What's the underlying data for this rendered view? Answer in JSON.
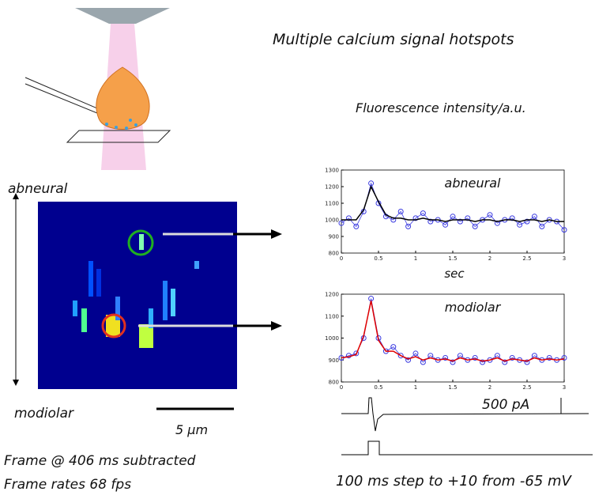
{
  "title": "Multiple calcium signal hotspots",
  "axis_note": "Fluorescence intensity/a.u.",
  "image_labels": {
    "top": "abneural",
    "bottom": "modiolar",
    "scale": "5 µm"
  },
  "notes": [
    "Frame @ 406 ms subtracted",
    "Frame rates 68 fps"
  ],
  "current_scale": "500 pA",
  "protocol": "100 ms step to +10 from -65 mV",
  "chart_data": [
    {
      "type": "line",
      "title": "abneural",
      "xlabel": "sec",
      "x": [
        0,
        0.1,
        0.2,
        0.3,
        0.4,
        0.5,
        0.6,
        0.7,
        0.8,
        0.9,
        1,
        1.1,
        1.2,
        1.3,
        1.4,
        1.5,
        1.6,
        1.7,
        1.8,
        1.9,
        2,
        2.1,
        2.2,
        2.3,
        2.4,
        2.5,
        2.6,
        2.7,
        2.8,
        2.9,
        3
      ],
      "series": [
        {
          "color": "#3a3ae0",
          "marker": "circle",
          "values": [
            980,
            1010,
            960,
            1050,
            1220,
            1100,
            1020,
            1000,
            1050,
            960,
            1010,
            1040,
            990,
            1000,
            970,
            1020,
            990,
            1010,
            960,
            1000,
            1030,
            980,
            1000,
            1010,
            970,
            990,
            1020,
            960,
            1000,
            990,
            940
          ]
        },
        {
          "color": "#000000",
          "values": [
            1000,
            1000,
            1000,
            1060,
            1200,
            1110,
            1030,
            1010,
            1010,
            1000,
            1000,
            1010,
            1000,
            1000,
            990,
            1000,
            1000,
            1000,
            990,
            1000,
            1000,
            990,
            1000,
            1000,
            990,
            1000,
            1000,
            990,
            1000,
            990,
            990
          ]
        }
      ],
      "xlim": [
        0,
        3
      ],
      "xticks": [
        0,
        0.5,
        1,
        1.5,
        2,
        2.5,
        3
      ],
      "ylim": [
        800,
        1300
      ],
      "yticks": [
        800,
        900,
        1000,
        1100,
        1200,
        1300
      ]
    },
    {
      "type": "line",
      "title": "modiolar",
      "x": [
        0,
        0.1,
        0.2,
        0.3,
        0.4,
        0.5,
        0.6,
        0.7,
        0.8,
        0.9,
        1,
        1.1,
        1.2,
        1.3,
        1.4,
        1.5,
        1.6,
        1.7,
        1.8,
        1.9,
        2,
        2.1,
        2.2,
        2.3,
        2.4,
        2.5,
        2.6,
        2.7,
        2.8,
        2.9,
        3
      ],
      "series": [
        {
          "color": "#3a3ae0",
          "marker": "circle",
          "values": [
            910,
            920,
            930,
            1000,
            1180,
            1000,
            940,
            960,
            920,
            900,
            930,
            890,
            920,
            900,
            910,
            890,
            920,
            900,
            910,
            890,
            900,
            920,
            890,
            910,
            900,
            890,
            920,
            900,
            910,
            900,
            910
          ]
        },
        {
          "color": "#e00000",
          "values": [
            910,
            915,
            925,
            1010,
            1170,
            990,
            940,
            940,
            920,
            905,
            915,
            900,
            910,
            900,
            905,
            895,
            910,
            900,
            905,
            895,
            900,
            910,
            895,
            905,
            900,
            895,
            910,
            900,
            905,
            900,
            905
          ]
        }
      ],
      "xlim": [
        0,
        3
      ],
      "xticks": [
        0,
        0.5,
        1,
        1.5,
        2,
        2.5,
        3
      ],
      "ylim": [
        800,
        1200
      ],
      "yticks": [
        800,
        900,
        1000,
        1100,
        1200
      ]
    }
  ]
}
